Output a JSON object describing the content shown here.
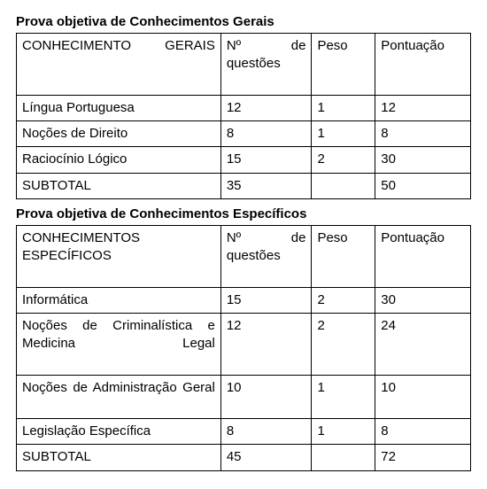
{
  "tables": [
    {
      "title": "Prova objetiva de Conhecimentos Gerais",
      "header": {
        "subject": "CONHECIMENTO GERAIS",
        "nq": "Nº de questões",
        "peso": "Peso",
        "pont": "Pontuação"
      },
      "rows": [
        {
          "subject": "Língua Portuguesa",
          "nq": "12",
          "peso": "1",
          "pont": "12",
          "justify": false
        },
        {
          "subject": "Noções de Direito",
          "nq": "8",
          "peso": "1",
          "pont": "8",
          "justify": false
        },
        {
          "subject": "Raciocínio Lógico",
          "nq": "15",
          "peso": "2",
          "pont": "30",
          "justify": false
        }
      ],
      "subtotal": {
        "label": "SUBTOTAL",
        "nq": "35",
        "peso": "",
        "pont": "50"
      }
    },
    {
      "title": "Prova objetiva de Conhecimentos Específicos",
      "header": {
        "subject": "CONHECIMENTOS ESPECÍFICOS",
        "nq": "Nº de questões",
        "peso": "Peso",
        "pont": "Pontuação"
      },
      "rows": [
        {
          "subject": "Informática",
          "nq": "15",
          "peso": "2",
          "pont": "30",
          "justify": false
        },
        {
          "subject": "Noções de Criminalística e Medicina Legal",
          "nq": "12",
          "peso": "2",
          "pont": "24",
          "justify": true
        },
        {
          "subject": "Noções de Administração Geral",
          "nq": "10",
          "peso": "1",
          "pont": "10",
          "justify": true
        },
        {
          "subject": "Legislação Específica",
          "nq": "8",
          "peso": "1",
          "pont": "8",
          "justify": false
        }
      ],
      "subtotal": {
        "label": "SUBTOTAL",
        "nq": "45",
        "peso": "",
        "pont": "72"
      }
    }
  ],
  "styling": {
    "border_color": "#000000",
    "background_color": "#ffffff",
    "text_color": "#000000",
    "font_family": "Arial",
    "title_fontsize_pt": 11,
    "cell_fontsize_pt": 11,
    "col_widths_pct": {
      "subject": 45,
      "nq": 20,
      "peso": 14,
      "pont": 21
    }
  }
}
